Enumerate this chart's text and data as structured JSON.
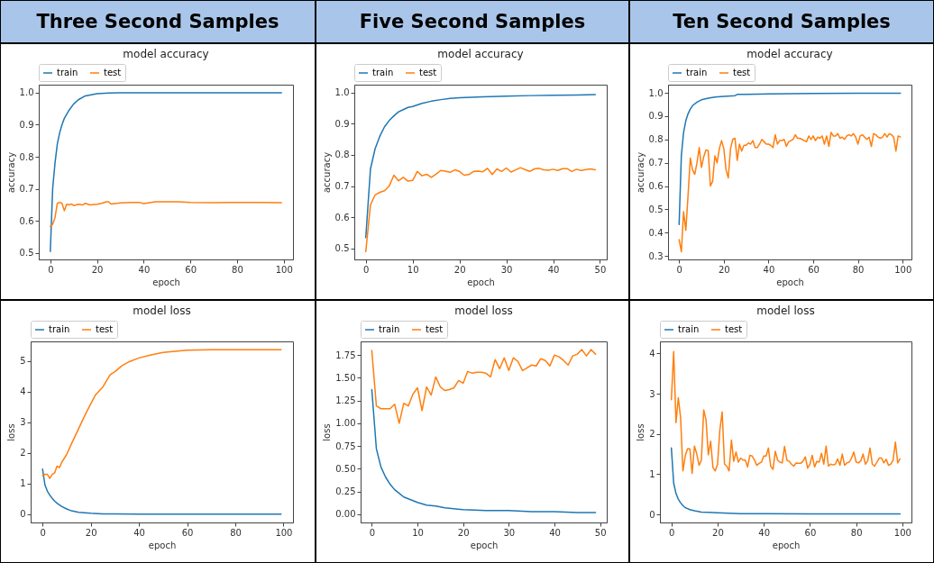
{
  "chart_data": [
    {
      "type": "line",
      "title": "model accuracy",
      "annotations": [
        "Three Second Samples"
      ],
      "xlabel": "epoch",
      "ylabel": "accuracy",
      "xlim": [
        -4.95,
        103.95
      ],
      "xticks": [
        0,
        20,
        40,
        60,
        80,
        100
      ],
      "ylim": [
        0.48,
        1.025
      ],
      "yticks": [
        0.5,
        0.6,
        0.7,
        0.8,
        0.9,
        {
          "value": 1,
          "label": "1.0"
        }
      ],
      "grid": false,
      "legend": "top left",
      "series": [
        {
          "name": "train",
          "color": "#1f77b4",
          "x": [
            0,
            1,
            2,
            3,
            4,
            5,
            6,
            8,
            10,
            12,
            15,
            20,
            25,
            30,
            40,
            60,
            80,
            99
          ],
          "values": [
            0.505,
            0.7,
            0.78,
            0.84,
            0.875,
            0.9,
            0.92,
            0.945,
            0.965,
            0.978,
            0.99,
            0.997,
            0.999,
            1.0,
            1.0,
            1.0,
            1.0,
            1.0
          ]
        },
        {
          "name": "test",
          "color": "#ff7f0e",
          "x": [
            0,
            1,
            2,
            3,
            4,
            5,
            6,
            7,
            8,
            9,
            10,
            12,
            14,
            15,
            17,
            20,
            22,
            24,
            25,
            26,
            30,
            35,
            38,
            40,
            45,
            55,
            60,
            70,
            80,
            90,
            99
          ],
          "values": [
            0.583,
            0.59,
            0.61,
            0.655,
            0.658,
            0.655,
            0.632,
            0.652,
            0.65,
            0.653,
            0.648,
            0.652,
            0.65,
            0.655,
            0.65,
            0.652,
            0.655,
            0.66,
            0.66,
            0.653,
            0.656,
            0.658,
            0.658,
            0.654,
            0.66,
            0.66,
            0.658,
            0.657,
            0.658,
            0.658,
            0.657
          ]
        }
      ]
    },
    {
      "type": "line",
      "title": "model accuracy",
      "annotations": [
        "Five Second Samples"
      ],
      "xlabel": "epoch",
      "ylabel": "accuracy",
      "xlim": [
        -2.45,
        51.45
      ],
      "xticks": [
        0,
        10,
        20,
        30,
        40,
        50
      ],
      "ylim": [
        0.465,
        1.025
      ],
      "yticks": [
        0.5,
        0.6,
        0.7,
        0.8,
        0.9,
        {
          "value": 1,
          "label": "1.0"
        }
      ],
      "grid": false,
      "legend": "top left",
      "series": [
        {
          "name": "train",
          "color": "#1f77b4",
          "x": [
            0,
            1,
            2,
            3,
            4,
            5,
            6,
            7,
            8,
            9,
            10,
            12,
            14,
            16,
            18,
            20,
            25,
            30,
            35,
            40,
            45,
            49
          ],
          "values": [
            0.535,
            0.755,
            0.82,
            0.86,
            0.89,
            0.91,
            0.925,
            0.938,
            0.945,
            0.952,
            0.955,
            0.965,
            0.972,
            0.977,
            0.981,
            0.983,
            0.986,
            0.988,
            0.99,
            0.991,
            0.992,
            0.993
          ]
        },
        {
          "name": "test",
          "color": "#ff7f0e",
          "x": [
            0,
            1,
            2,
            3,
            4,
            5,
            6,
            7,
            8,
            9,
            10,
            11,
            12,
            13,
            14,
            15,
            16,
            17,
            18,
            19,
            20,
            21,
            22,
            23,
            24,
            25,
            26,
            27,
            28,
            29,
            30,
            31,
            32,
            33,
            34,
            35,
            36,
            37,
            38,
            39,
            40,
            41,
            42,
            43,
            44,
            45,
            46,
            47,
            48,
            49
          ],
          "values": [
            0.49,
            0.64,
            0.672,
            0.68,
            0.685,
            0.7,
            0.735,
            0.717,
            0.728,
            0.716,
            0.718,
            0.747,
            0.733,
            0.738,
            0.728,
            0.738,
            0.75,
            0.748,
            0.744,
            0.752,
            0.747,
            0.735,
            0.737,
            0.747,
            0.748,
            0.746,
            0.757,
            0.737,
            0.755,
            0.747,
            0.758,
            0.745,
            0.752,
            0.759,
            0.753,
            0.747,
            0.755,
            0.757,
            0.752,
            0.751,
            0.754,
            0.75,
            0.756,
            0.756,
            0.747,
            0.754,
            0.75,
            0.753,
            0.755,
            0.752
          ]
        }
      ]
    },
    {
      "type": "line",
      "title": "model accuracy",
      "annotations": [
        "Ten Second Samples"
      ],
      "xlabel": "epoch",
      "ylabel": "accuracy",
      "xlim": [
        -4.95,
        103.95
      ],
      "xticks": [
        0,
        20,
        40,
        60,
        80,
        100
      ],
      "ylim": [
        0.285,
        1.035
      ],
      "yticks": [
        0.3,
        0.4,
        0.5,
        0.6,
        0.7,
        0.8,
        0.9,
        {
          "value": 1,
          "label": "1.0"
        }
      ],
      "grid": false,
      "legend": "top left",
      "series": [
        {
          "name": "train",
          "color": "#1f77b4",
          "x": [
            0,
            1,
            2,
            3,
            4,
            5,
            6,
            8,
            10,
            13,
            16,
            20,
            25,
            26,
            30,
            40,
            60,
            80,
            99
          ],
          "values": [
            0.435,
            0.73,
            0.83,
            0.88,
            0.91,
            0.93,
            0.945,
            0.96,
            0.97,
            0.977,
            0.982,
            0.985,
            0.988,
            0.993,
            0.993,
            0.995,
            0.997,
            0.998,
            0.998
          ]
        },
        {
          "name": "test",
          "color": "#ff7f0e",
          "x": [
            0,
            1,
            2,
            3,
            4,
            5,
            6,
            7,
            8,
            9,
            10,
            11,
            12,
            13,
            14,
            15,
            16,
            17,
            18,
            19,
            20,
            21,
            22,
            23,
            24,
            25,
            26,
            27,
            28,
            29,
            30,
            31,
            32,
            33,
            34,
            35,
            36,
            37,
            38,
            39,
            40,
            41,
            42,
            43,
            44,
            45,
            46,
            47,
            48,
            49,
            50,
            51,
            52,
            53,
            54,
            55,
            56,
            57,
            58,
            59,
            60,
            61,
            62,
            63,
            64,
            65,
            66,
            67,
            68,
            69,
            70,
            71,
            72,
            73,
            74,
            75,
            76,
            77,
            78,
            79,
            80,
            81,
            82,
            83,
            84,
            85,
            86,
            87,
            88,
            89,
            90,
            91,
            92,
            93,
            94,
            95,
            96,
            97,
            98,
            99
          ],
          "values": [
            0.37,
            0.318,
            0.49,
            0.41,
            0.56,
            0.72,
            0.67,
            0.65,
            0.7,
            0.765,
            0.68,
            0.725,
            0.755,
            0.752,
            0.6,
            0.62,
            0.73,
            0.7,
            0.76,
            0.795,
            0.76,
            0.67,
            0.635,
            0.76,
            0.8,
            0.805,
            0.71,
            0.78,
            0.75,
            0.775,
            0.775,
            0.785,
            0.78,
            0.795,
            0.765,
            0.765,
            0.78,
            0.8,
            0.79,
            0.78,
            0.78,
            0.775,
            0.765,
            0.82,
            0.78,
            0.795,
            0.795,
            0.8,
            0.77,
            0.79,
            0.795,
            0.8,
            0.82,
            0.805,
            0.805,
            0.8,
            0.795,
            0.79,
            0.815,
            0.8,
            0.815,
            0.795,
            0.81,
            0.805,
            0.815,
            0.78,
            0.815,
            0.77,
            0.83,
            0.815,
            0.815,
            0.825,
            0.805,
            0.81,
            0.8,
            0.815,
            0.82,
            0.815,
            0.825,
            0.81,
            0.78,
            0.815,
            0.82,
            0.81,
            0.8,
            0.81,
            0.77,
            0.825,
            0.82,
            0.81,
            0.805,
            0.81,
            0.825,
            0.81,
            0.825,
            0.82,
            0.81,
            0.75,
            0.815,
            0.81
          ]
        }
      ]
    },
    {
      "type": "line",
      "title": "model loss",
      "xlabel": "epoch",
      "ylabel": "loss",
      "xlim": [
        -4.95,
        103.95
      ],
      "xticks": [
        0,
        20,
        40,
        60,
        80,
        100
      ],
      "ylim": [
        -0.27,
        5.64
      ],
      "yticks": [
        0,
        1,
        2,
        3,
        4,
        5
      ],
      "grid": false,
      "legend": "top left",
      "series": [
        {
          "name": "train",
          "color": "#1f77b4",
          "x": [
            0,
            1,
            2,
            3,
            4,
            5,
            6,
            8,
            10,
            12,
            15,
            20,
            25,
            30,
            40,
            60,
            80,
            99
          ],
          "values": [
            1.47,
            0.95,
            0.75,
            0.62,
            0.52,
            0.43,
            0.36,
            0.25,
            0.17,
            0.11,
            0.06,
            0.03,
            0.01,
            0.01,
            0,
            0,
            0,
            0
          ]
        },
        {
          "name": "test",
          "color": "#ff7f0e",
          "x": [
            0,
            1,
            2,
            3,
            4,
            5,
            6,
            7,
            8,
            10,
            12,
            15,
            18,
            20,
            22,
            25,
            28,
            30,
            33,
            36,
            40,
            45,
            50,
            55,
            60,
            70,
            80,
            90,
            99
          ],
          "values": [
            1.25,
            1.3,
            1.3,
            1.17,
            1.3,
            1.35,
            1.57,
            1.52,
            1.7,
            1.95,
            2.3,
            2.8,
            3.3,
            3.6,
            3.9,
            4.15,
            4.55,
            4.65,
            4.85,
            4.98,
            5.1,
            5.2,
            5.28,
            5.32,
            5.35,
            5.37,
            5.37,
            5.37,
            5.37
          ]
        }
      ]
    },
    {
      "type": "line",
      "title": "model loss",
      "xlabel": "epoch",
      "ylabel": "loss",
      "xlim": [
        -2.45,
        51.45
      ],
      "xticks": [
        0,
        10,
        20,
        30,
        40,
        50
      ],
      "ylim": [
        -0.09,
        1.9
      ],
      "yticks": [
        {
          "value": 0,
          "label": "0.00"
        },
        {
          "value": 0.25,
          "label": "0.25"
        },
        {
          "value": 0.5,
          "label": "0.50"
        },
        {
          "value": 0.75,
          "label": "0.75"
        },
        {
          "value": 1,
          "label": "1.00"
        },
        {
          "value": 1.25,
          "label": "1.25"
        },
        {
          "value": 1.5,
          "label": "1.50"
        },
        {
          "value": 1.75,
          "label": "1.75"
        }
      ],
      "grid": false,
      "legend": "top left",
      "series": [
        {
          "name": "train",
          "color": "#1f77b4",
          "x": [
            0,
            1,
            2,
            3,
            4,
            5,
            6,
            7,
            8,
            9,
            10,
            12,
            14,
            16,
            18,
            20,
            25,
            30,
            35,
            40,
            45,
            49
          ],
          "values": [
            1.37,
            0.72,
            0.52,
            0.41,
            0.33,
            0.27,
            0.23,
            0.19,
            0.17,
            0.15,
            0.13,
            0.1,
            0.09,
            0.07,
            0.06,
            0.05,
            0.04,
            0.04,
            0.03,
            0.03,
            0.02,
            0.02
          ]
        },
        {
          "name": "test",
          "color": "#ff7f0e",
          "x": [
            0,
            1,
            2,
            3,
            4,
            5,
            6,
            7,
            8,
            9,
            10,
            11,
            12,
            13,
            14,
            15,
            16,
            17,
            18,
            19,
            20,
            21,
            22,
            23,
            24,
            25,
            26,
            27,
            28,
            29,
            30,
            31,
            32,
            33,
            34,
            35,
            36,
            37,
            38,
            39,
            40,
            41,
            42,
            43,
            44,
            45,
            46,
            47,
            48,
            49
          ],
          "values": [
            1.8,
            1.19,
            1.16,
            1.16,
            1.16,
            1.21,
            1.0,
            1.22,
            1.19,
            1.32,
            1.39,
            1.14,
            1.4,
            1.31,
            1.51,
            1.4,
            1.36,
            1.37,
            1.39,
            1.47,
            1.44,
            1.57,
            1.55,
            1.56,
            1.56,
            1.55,
            1.51,
            1.7,
            1.6,
            1.72,
            1.58,
            1.72,
            1.68,
            1.58,
            1.61,
            1.64,
            1.63,
            1.71,
            1.69,
            1.63,
            1.75,
            1.73,
            1.69,
            1.64,
            1.74,
            1.76,
            1.81,
            1.74,
            1.81,
            1.76
          ]
        }
      ]
    },
    {
      "type": "line",
      "title": "model loss",
      "xlabel": "epoch",
      "ylabel": "loss",
      "xlim": [
        -4.95,
        103.95
      ],
      "xticks": [
        0,
        20,
        40,
        60,
        80,
        100
      ],
      "ylim": [
        -0.2,
        4.3
      ],
      "yticks": [
        0,
        1,
        2,
        3,
        4
      ],
      "grid": false,
      "legend": "top left",
      "series": [
        {
          "name": "train",
          "color": "#1f77b4",
          "x": [
            0,
            1,
            2,
            3,
            4,
            5,
            6,
            8,
            10,
            13,
            16,
            20,
            25,
            30,
            40,
            60,
            80,
            99
          ],
          "values": [
            1.65,
            0.78,
            0.52,
            0.38,
            0.29,
            0.22,
            0.17,
            0.12,
            0.09,
            0.06,
            0.05,
            0.04,
            0.03,
            0.02,
            0.02,
            0.01,
            0.01,
            0.01
          ]
        },
        {
          "name": "test",
          "color": "#ff7f0e",
          "x": [
            0,
            1,
            2,
            3,
            4,
            5,
            6,
            7,
            8,
            9,
            10,
            11,
            12,
            13,
            14,
            15,
            16,
            17,
            18,
            19,
            20,
            21,
            22,
            23,
            24,
            25,
            26,
            27,
            28,
            29,
            30,
            31,
            32,
            33,
            34,
            35,
            36,
            37,
            38,
            39,
            40,
            41,
            42,
            43,
            44,
            45,
            46,
            47,
            48,
            49,
            50,
            51,
            52,
            53,
            54,
            55,
            56,
            57,
            58,
            59,
            60,
            61,
            62,
            63,
            64,
            65,
            66,
            67,
            68,
            69,
            70,
            71,
            72,
            73,
            74,
            75,
            76,
            77,
            78,
            79,
            80,
            81,
            82,
            83,
            84,
            85,
            86,
            87,
            88,
            89,
            90,
            91,
            92,
            93,
            94,
            95,
            96,
            97,
            98,
            99
          ],
          "values": [
            2.85,
            4.05,
            2.28,
            2.9,
            2.4,
            1.08,
            1.45,
            1.63,
            1.63,
            1.02,
            1.7,
            1.5,
            1.22,
            1.35,
            2.6,
            2.35,
            1.48,
            1.82,
            1.17,
            1.08,
            1.25,
            2.1,
            2.55,
            1.25,
            1.2,
            1.08,
            1.85,
            1.32,
            1.55,
            1.3,
            1.4,
            1.35,
            1.35,
            1.18,
            1.47,
            1.45,
            1.35,
            1.22,
            1.27,
            1.3,
            1.45,
            1.45,
            1.65,
            1.2,
            1.12,
            1.57,
            1.35,
            1.3,
            1.28,
            1.69,
            1.35,
            1.32,
            1.25,
            1.2,
            1.28,
            1.27,
            1.27,
            1.32,
            1.43,
            1.15,
            1.25,
            1.47,
            1.18,
            1.32,
            1.3,
            1.52,
            1.25,
            1.7,
            1.2,
            1.25,
            1.23,
            1.25,
            1.38,
            1.22,
            1.5,
            1.22,
            1.28,
            1.3,
            1.4,
            1.55,
            1.3,
            1.28,
            1.33,
            1.5,
            1.25,
            1.33,
            1.65,
            1.25,
            1.2,
            1.3,
            1.4,
            1.4,
            1.28,
            1.37,
            1.22,
            1.25,
            1.35,
            1.8,
            1.28,
            1.38
          ]
        }
      ]
    }
  ]
}
